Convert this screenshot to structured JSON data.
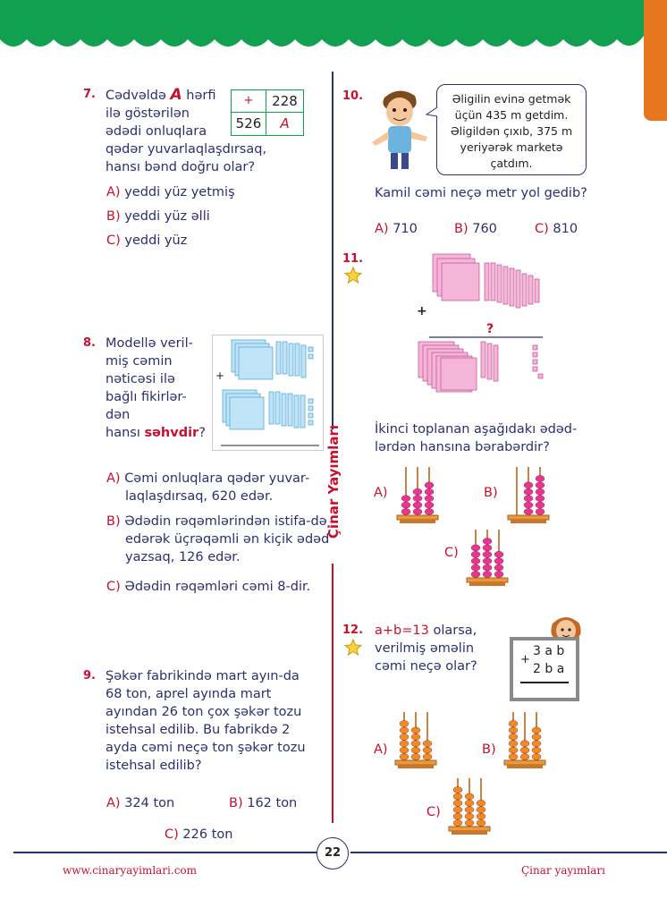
{
  "page_number": "22",
  "footer": {
    "website": "www.cinaryayimlari.com",
    "publisher": "Çinar yayımları"
  },
  "vertical_brand": "Çinar Yayımları",
  "colors": {
    "header_green": "#11a04f",
    "accent_red": "#c8102e",
    "text_blue": "#2b2f6e",
    "side_orange": "#e8761c"
  },
  "q7": {
    "number": "7.",
    "lines": [
      "Cədvəldə",
      "A",
      "hərfi",
      "ilə göstərilən",
      "ədədi onluqlara",
      "qədər yuvarlaqlaşdırsaq,",
      "hansı bənd doğru olar?"
    ],
    "table": {
      "plus": "+",
      "top": "228",
      "left": "526",
      "var": "A"
    },
    "options": [
      {
        "letter": "A)",
        "text": "yeddi yüz yetmiş"
      },
      {
        "letter": "B)",
        "text": "yeddi yüz əlli"
      },
      {
        "letter": "C)",
        "text": "yeddi yüz"
      }
    ]
  },
  "q8": {
    "number": "8.",
    "lines": [
      "Modellə veril-",
      "miş cəmin",
      "nəticəsi ilə",
      "bağlı fikirlər-",
      "dən",
      "hansı",
      "səhvdir",
      "?"
    ],
    "plus": "+",
    "options": [
      {
        "letter": "A)",
        "text": "Cəmi onluqlara qədər yuvar-laqlaşdırsaq, 620 edər."
      },
      {
        "letter": "B)",
        "text": "Ədədin rəqəmlərindən istifa-də edərək üçrəqəmli ən kiçik ədəd yazsaq, 126 edər."
      },
      {
        "letter": "C)",
        "text": "Ədədin rəqəmləri cəmi 8-dir."
      }
    ]
  },
  "q9": {
    "number": "9.",
    "text": "Şəkər fabrikində mart ayın-da 68 ton, aprel ayında mart ayından 26 ton çox şəkər tozu istehsal edilib. Bu fabrikdə 2 ayda cəmi neçə ton şəkər tozu istehsal edilib?",
    "options": [
      {
        "letter": "A)",
        "text": "324 ton"
      },
      {
        "letter": "B)",
        "text": "162 ton"
      },
      {
        "letter": "C)",
        "text": "226 ton"
      }
    ]
  },
  "q10": {
    "number": "10.",
    "bubble": "Əligilin evinə getmək üçün 435 m getdim. Əligildən çıxıb, 375 m yeriyərək marketə çatdım.",
    "question": "Kamil cəmi neçə metr yol gedib?",
    "options": [
      {
        "letter": "A)",
        "text": "710"
      },
      {
        "letter": "B)",
        "text": "760"
      },
      {
        "letter": "C)",
        "text": "810"
      }
    ]
  },
  "q11": {
    "number": "11.",
    "plus": "+",
    "qmark": "?",
    "question": "İkinci toplanan aşağıdakı ədəd-lərdən hansına bərabərdir?",
    "options": [
      {
        "letter": "A)",
        "rods": [
          3,
          4,
          5
        ]
      },
      {
        "letter": "B)",
        "rods": [
          0,
          5,
          6
        ]
      },
      {
        "letter": "C)",
        "rods": [
          5,
          6,
          4
        ]
      }
    ]
  },
  "q12": {
    "number": "12.",
    "line1": "a+b=13",
    "line1_rest": "olarsa,",
    "line2": "verilmiş əməlin",
    "line3": "cəmi neçə olar?",
    "board": {
      "plus": "+",
      "row1": "3 a b",
      "row2": "2 b a"
    },
    "options": [
      {
        "letter": "A)",
        "rods": [
          6,
          5,
          3
        ]
      },
      {
        "letter": "B)",
        "rods": [
          6,
          3,
          5
        ]
      },
      {
        "letter": "C)",
        "rods": [
          6,
          5,
          4
        ]
      }
    ]
  }
}
